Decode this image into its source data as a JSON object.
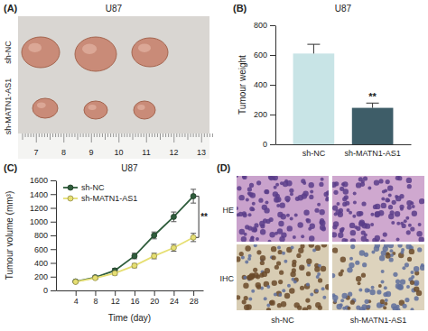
{
  "chart_data": [
    {
      "type": "bar",
      "title": "U87",
      "annotations": [
        "(B)",
        "**"
      ],
      "ylabel": "Tumour weight",
      "categories": [
        "sh-NC",
        "sh-MATN1-AS1"
      ],
      "values": [
        610,
        245
      ],
      "errors": [
        62,
        32
      ],
      "colors": [
        "#c8e4e6",
        "#3e5d68"
      ],
      "ylim": [
        0,
        800
      ],
      "yticks": [
        0,
        200,
        400,
        600,
        800
      ],
      "grid": false
    },
    {
      "type": "line",
      "title": "U87",
      "annotations": [
        "(C)",
        "**"
      ],
      "xlabel": "Time (day)",
      "ylabel": "Tumour volume (mm³)",
      "x": [
        4,
        8,
        12,
        16,
        20,
        24,
        28
      ],
      "series": [
        {
          "name": "sh-NC",
          "color": "#2f5d3c",
          "marker": "circle",
          "values": [
            130,
            190,
            290,
            500,
            800,
            1070,
            1370
          ],
          "errors": [
            10,
            20,
            30,
            40,
            50,
            70,
            100
          ]
        },
        {
          "name": "sh-MATN1-AS1",
          "color": "#e6df72",
          "marker": "circle",
          "values": [
            125,
            180,
            250,
            360,
            500,
            620,
            770
          ],
          "errors": [
            10,
            15,
            25,
            30,
            40,
            50,
            60
          ]
        }
      ],
      "xlim": [
        0,
        30
      ],
      "xticks": [
        4,
        8,
        12,
        16,
        20,
        24,
        28
      ],
      "ylim": [
        0,
        1600
      ],
      "yticks": [
        0,
        200,
        400,
        600,
        800,
        1000,
        1200,
        1400,
        1600
      ],
      "legend": "upper left",
      "grid": false
    }
  ],
  "images": [
    {
      "annotations": [
        "(A)"
      ],
      "title": "U87",
      "row_labels": [
        "sh-NC",
        "sh-MATN1-AS1"
      ],
      "ruler_labels": [
        "7",
        "8",
        "9",
        "10",
        "11",
        "12",
        "13"
      ]
    },
    {
      "annotations": [
        "(D)"
      ],
      "row_labels": [
        "HE",
        "IHC"
      ],
      "column_labels": [
        "sh-NC",
        "sh-MATN1-AS1"
      ]
    }
  ]
}
